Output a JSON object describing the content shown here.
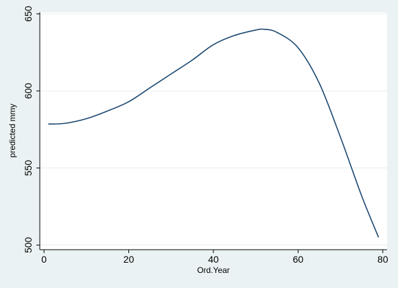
{
  "chart_data": {
    "type": "line",
    "title": "",
    "xlabel": "Ord.Year",
    "ylabel": "predicted mmy",
    "xlim": [
      -1,
      81
    ],
    "ylim": [
      497,
      651
    ],
    "xticks": [
      0,
      20,
      40,
      60,
      80
    ],
    "yticks": [
      500,
      550,
      600,
      650
    ],
    "grid": {
      "horizontal": true,
      "vertical": false
    },
    "colors": {
      "background": "#eaf2f3",
      "plot_area": "#ffffff",
      "line": "#1a476f",
      "grid": "#e6eef0"
    },
    "series": [
      {
        "x": [
          1,
          5,
          10,
          15,
          20,
          25,
          30,
          35,
          40,
          45,
          50,
          52,
          55,
          60,
          65,
          70,
          75,
          79
        ],
        "values": [
          578.5,
          579,
          582,
          587,
          593,
          602,
          611,
          620,
          630,
          636,
          639.5,
          640,
          638,
          628,
          605,
          570,
          532,
          505
        ]
      }
    ]
  }
}
